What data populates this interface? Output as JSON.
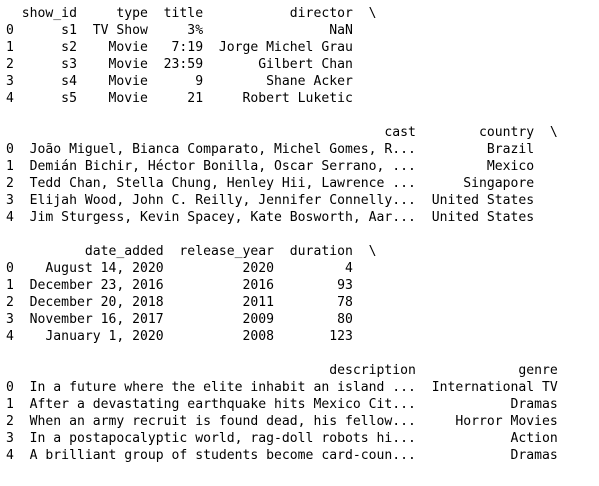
{
  "dataframe_output": {
    "blocks": [
      {
        "header": "  show_id     type  title           director  \\",
        "rows": [
          "0      s1  TV Show     3%                NaN",
          "1      s2    Movie   7:19  Jorge Michel Grau",
          "2      s3    Movie  23:59       Gilbert Chan",
          "3      s4    Movie      9        Shane Acker",
          "4      s5    Movie     21     Robert Luketic"
        ]
      },
      {
        "header": "                                                cast        country  \\",
        "rows": [
          "0  João Miguel, Bianca Comparato, Michel Gomes, R...         Brazil",
          "1  Demián Bichir, Héctor Bonilla, Oscar Serrano, ...         Mexico",
          "2  Tedd Chan, Stella Chung, Henley Hii, Lawrence ...      Singapore",
          "3  Elijah Wood, John C. Reilly, Jennifer Connelly...  United States",
          "4  Jim Sturgess, Kevin Spacey, Kate Bosworth, Aar...  United States"
        ]
      },
      {
        "header": "          date_added  release_year  duration  \\",
        "rows": [
          "0    August 14, 2020          2020         4",
          "1  December 23, 2016          2016        93",
          "2  December 20, 2018          2011        78",
          "3  November 16, 2017          2009        80",
          "4    January 1, 2020          2008       123"
        ]
      },
      {
        "header": "                                         description             genre",
        "rows": [
          "0  In a future where the elite inhabit an island ...  International TV",
          "1  After a devastating earthquake hits Mexico Cit...            Dramas",
          "2  When an army recruit is found dead, his fellow...     Horror Movies",
          "3  In a postapocalyptic world, rag-doll robots hi...            Action",
          "4  A brilliant group of students become card-coun...            Dramas"
        ]
      }
    ]
  }
}
